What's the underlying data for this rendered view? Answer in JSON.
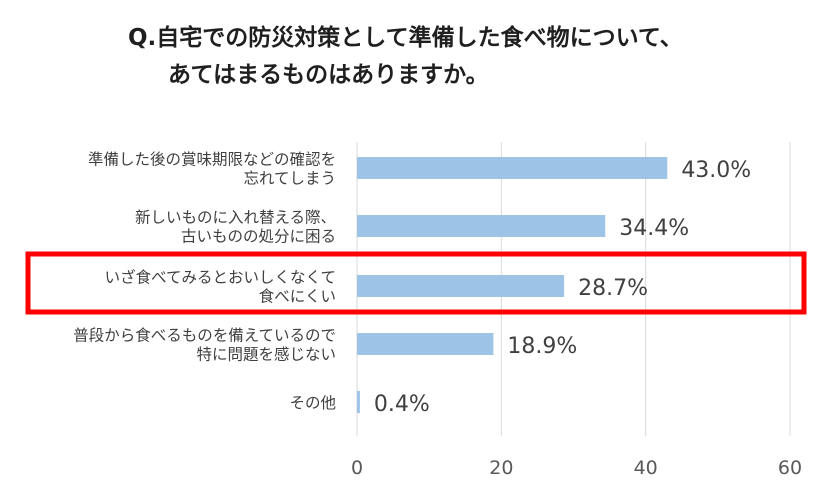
{
  "title": {
    "line1": "Q.自宅での防災対策として準備した食べ物について、",
    "line2": "あてはまるものはありますか。"
  },
  "colors": {
    "bar": "#9dc3e6",
    "highlight": "#ff0000",
    "grid": "#d9d9d9"
  },
  "chart_data": {
    "type": "bar",
    "orientation": "horizontal",
    "categories": [
      [
        "準備した後の賞味期限などの確認を",
        "忘れてしまう"
      ],
      [
        "新しいものに入れ替える際、",
        "古いものの処分に困る"
      ],
      [
        "いざ食べてみるとおいしくなくて",
        "食べにくい"
      ],
      [
        "普段から食べるものを備えているので",
        "特に問題を感じない"
      ],
      [
        "その他"
      ]
    ],
    "values": [
      43.0,
      34.4,
      28.7,
      18.9,
      0.4
    ],
    "data_labels": [
      "43.0%",
      "34.4%",
      "28.7%",
      "18.9%",
      "0.4%"
    ],
    "xlim": [
      0,
      60
    ],
    "xticks": [
      "0",
      "20",
      "40",
      "60"
    ],
    "grid": true,
    "highlighted_index": 2
  }
}
